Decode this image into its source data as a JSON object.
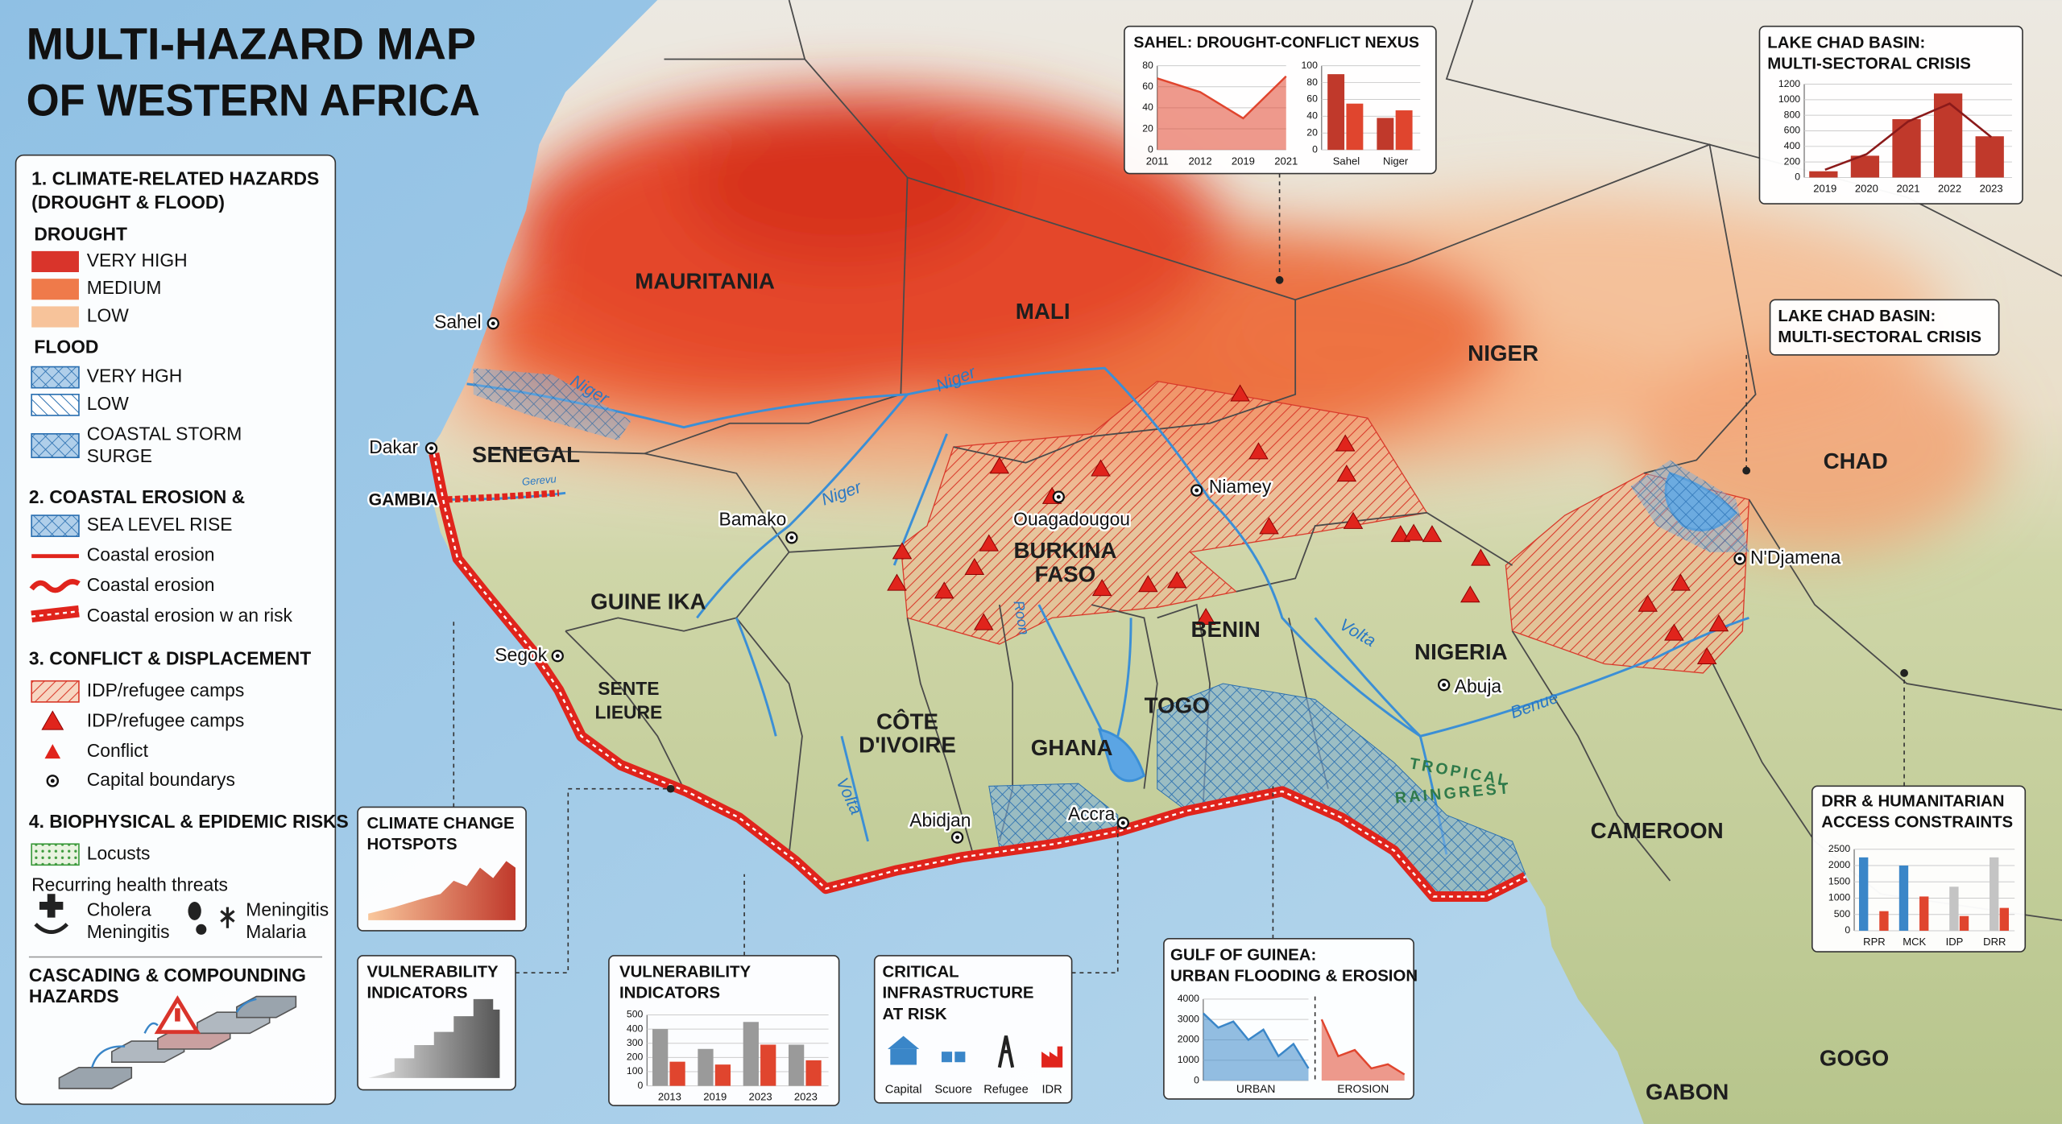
{
  "title": {
    "lines": [
      "MULTI-HAZARD MAP",
      "OF WESTERN AFRICA"
    ]
  },
  "legend": {
    "climate": {
      "heading": [
        "1. CLIMATE-RELATED HAZARDS",
        "(DROUGHT & FLOOD)"
      ],
      "drought": {
        "label": "DROUGHT",
        "items": [
          "VERY HIGH",
          "MEDIUM",
          "LOW"
        ]
      },
      "flood": {
        "label": "FLOOD",
        "items": [
          "VERY HGH",
          "LOW"
        ],
        "storm_surge": [
          "COASTAL STORM",
          "SURGE"
        ]
      }
    },
    "coastal": {
      "heading": "2. COASTAL EROSION &",
      "items": [
        "SEA LEVEL RISE",
        "Coastal erosion",
        "Coastal erosion",
        "Coastal erosion w an risk"
      ]
    },
    "conflict": {
      "heading": "3. CONFLICT & DISPLACEMENT",
      "items": [
        "IDP/refugee camps",
        "IDP/refugee camps",
        "Conflict",
        "Capital boundarys"
      ]
    },
    "biophysical": {
      "heading": "4. BIOPHYSICAL & EPIDEMIC RISKS",
      "items": [
        "Locusts"
      ],
      "health_heading": "Recurring health threats",
      "health": [
        [
          "Cholera",
          "Meningitis"
        ],
        [
          "Meningitis",
          "Malaria"
        ]
      ]
    },
    "cascading": [
      "CASCADING & COMPOUNDING",
      "HAZARDS"
    ]
  },
  "map": {
    "countries": [
      [
        "MAURITANIA"
      ],
      [
        "MALI"
      ],
      [
        "NIGER"
      ],
      [
        "SENEGAL"
      ],
      [
        "GUINE IKA"
      ],
      [
        "SENTE",
        "LIEURE"
      ],
      [
        "BURKINA",
        "FASO"
      ],
      [
        "CÔTE",
        "D'IVOIRE"
      ],
      [
        "GHANA"
      ],
      [
        "TOGO"
      ],
      [
        "BENIN"
      ],
      [
        "NIGERIA"
      ],
      [
        "CHAD"
      ],
      [
        "CAMEROON"
      ],
      [
        "GOGO"
      ],
      [
        "GABON"
      ]
    ],
    "cities": [
      "Sahel",
      "Dakar",
      "GAMBIA",
      "Bamako",
      "Segok",
      "Ouagadougou",
      "Niamey",
      "N'Djamena",
      "Abuja",
      "Abidjan",
      "Accra"
    ],
    "rivers": [
      "Niger",
      "Niger",
      "Niger",
      "Gerevu",
      "Volta",
      "Volta",
      "Benue",
      "Roon"
    ],
    "forest": [
      "TROPICAL",
      "RAINGREST"
    ]
  },
  "insets": {
    "sahel": {
      "title": "SAHEL: DROUGHT-CONFLICT NEXUS",
      "trend": {
        "type": "area",
        "categories": [
          "2011",
          "2012",
          "2019",
          "2021"
        ],
        "values": [
          68,
          55,
          30,
          70
        ],
        "color": "#e0452e",
        "ylim": [
          0,
          80
        ],
        "yticks": [
          0,
          20,
          40,
          60,
          80
        ]
      },
      "bars": {
        "type": "bar",
        "categories": [
          "Sahel",
          "Niger"
        ],
        "series": [
          {
            "color": "#c0392b",
            "values": [
              90,
              38
            ]
          },
          {
            "color": "#e0452e",
            "values": [
              55,
              47
            ]
          }
        ],
        "ylim": [
          0,
          100
        ],
        "yticks": [
          0,
          20,
          40,
          60,
          80,
          100
        ]
      }
    },
    "lake_chad": {
      "title": [
        "LAKE CHAD BASIN:",
        "MULTI-SECTORAL CRISIS"
      ],
      "type": "bar",
      "categories": [
        "2019",
        "2020",
        "2021",
        "2022",
        "2023"
      ],
      "series": [
        {
          "color": "#c0392b",
          "values": [
            80,
            280,
            750,
            1080,
            530
          ]
        },
        {
          "type": "line",
          "color": "#8b1a1a",
          "values": [
            100,
            300,
            720,
            950,
            520
          ]
        }
      ],
      "ylim": [
        0,
        1200
      ],
      "yticks": [
        0,
        200,
        400,
        600,
        800,
        1000,
        1200
      ]
    },
    "lake_chad_label": {
      "title": [
        "LAKE CHAD BASIN:",
        "MULTI-SECTORAL CRISIS"
      ]
    },
    "drr": {
      "title": [
        "DRR & HUMANITARIAN",
        "ACCESS CONSTRAINTS"
      ],
      "type": "bar",
      "categories": [
        "RPR",
        "MCK",
        "IDP",
        "DRR"
      ],
      "series": [
        {
          "color": "#3a86c8",
          "values": [
            2250,
            2000,
            null,
            null
          ]
        },
        {
          "color": "#c4c4c4",
          "values": [
            null,
            null,
            1350,
            2250
          ]
        },
        {
          "color": "#e0452e",
          "values": [
            600,
            1050,
            450,
            700
          ]
        }
      ],
      "ylim": [
        0,
        2500
      ],
      "yticks": [
        0,
        500,
        1000,
        1500,
        2000,
        2500
      ]
    },
    "gulf": {
      "title": [
        "GULF OF GUINEA:",
        "URBAN FLOODING & EROSION"
      ],
      "ylim": [
        0,
        4000
      ],
      "yticks": [
        0,
        1000,
        2000,
        3000,
        4000
      ],
      "panels": [
        {
          "label": "URBAN",
          "color": "#3a86c8",
          "values": [
            3300,
            2600,
            2900,
            2000,
            2500,
            1200,
            1800,
            600
          ]
        },
        {
          "label": "EROSION",
          "color": "#e0452e",
          "values": [
            3000,
            1200,
            1500,
            600,
            800,
            300
          ]
        }
      ]
    },
    "infrastructure": {
      "title": [
        "CRITICAL",
        "INFRASTRUCTURE",
        "AT RISK"
      ],
      "items": [
        "Capital",
        "Scuore",
        "Refugee",
        "IDR"
      ]
    },
    "vulnerability_chart": {
      "title": [
        "VULNERABILITY",
        "INDICATORS"
      ],
      "type": "bar",
      "categories": [
        "2013",
        "2019",
        "2023",
        "2023"
      ],
      "series": [
        {
          "color": "#9a9a9a",
          "values": [
            400,
            260,
            450,
            290
          ]
        },
        {
          "color": "#e0452e",
          "values": [
            170,
            150,
            290,
            180
          ]
        }
      ],
      "ylim": [
        0,
        500
      ],
      "yticks": [
        0,
        100,
        200,
        300,
        400,
        500
      ]
    },
    "vulnerability": {
      "title": [
        "VULNERABILITY",
        "INDICATORS"
      ]
    },
    "hotspots": {
      "title": [
        "CLIMATE CHANGE",
        "HOTSPOTS"
      ]
    }
  }
}
